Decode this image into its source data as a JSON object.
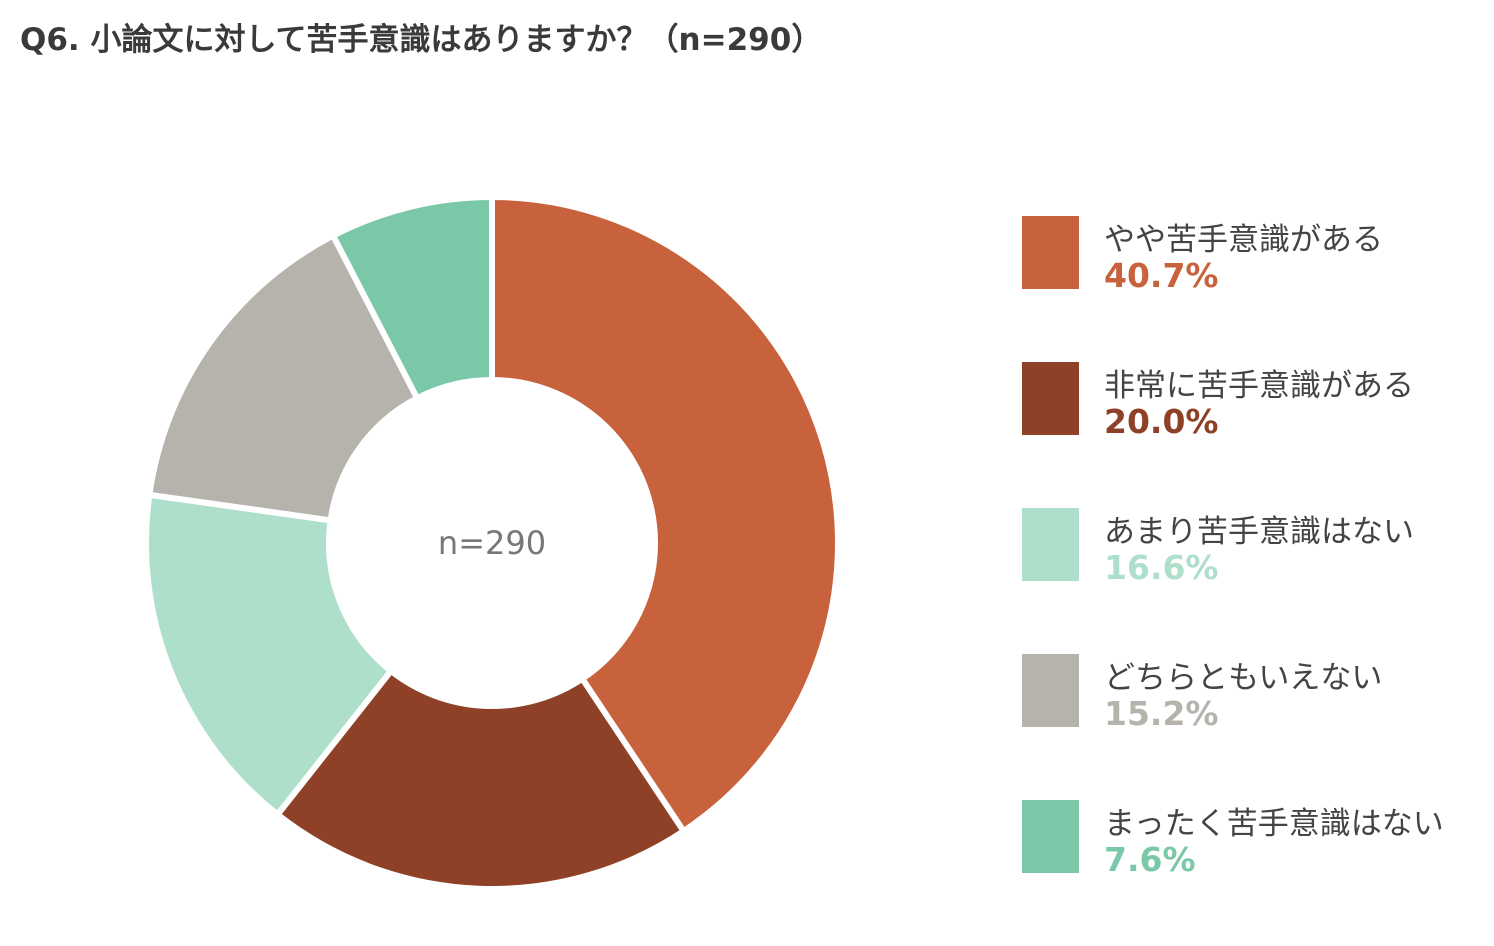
{
  "title": "Q6. 小論文に対して苦手意識はありますか？（n=290）",
  "chart_data": {
    "type": "pie",
    "center_label": "n=290",
    "slices": [
      {
        "label": "やや苦手意識がある",
        "value": 40.7,
        "value_label": "40.7%",
        "color": "#c8623c"
      },
      {
        "label": "非常に苦手意識がある",
        "value": 20.0,
        "value_label": "20.0%",
        "color": "#8e4127"
      },
      {
        "label": "あまり苦手意識はない",
        "value": 16.6,
        "value_label": "16.6%",
        "color": "#aedfca"
      },
      {
        "label": "どちらともいえない",
        "value": 15.2,
        "value_label": "15.2%",
        "color": "#b5b3ac"
      },
      {
        "label": "まったく苦手意識はない",
        "value": 7.6,
        "value_label": "7.6%",
        "color": "#7bc8a9"
      }
    ],
    "legend_position": "right"
  }
}
